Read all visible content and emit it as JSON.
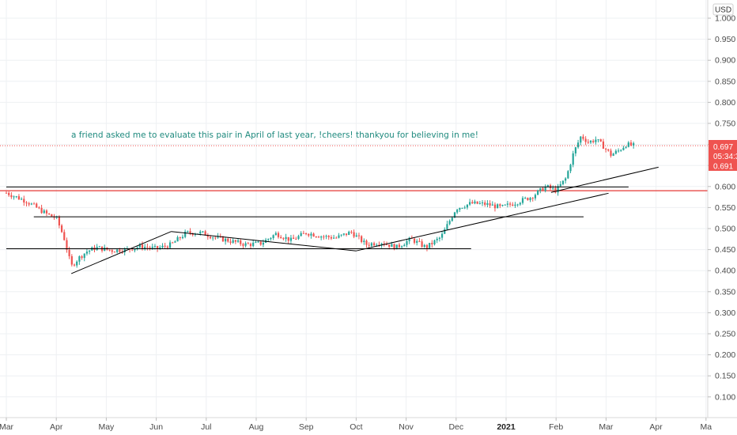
{
  "chart_data": {
    "type": "candlestick",
    "currency": "USD",
    "annotation": "a friend asked me to evaluate this pair in April of last year, !cheers! thankyou for believing in me!",
    "ylim": [
      0.05,
      1.03
    ],
    "y_ticks": [
      "1.000",
      "0.950",
      "0.900",
      "0.850",
      "0.800",
      "0.750",
      "0.700",
      "0.650",
      "0.600",
      "0.550",
      "0.500",
      "0.450",
      "0.400",
      "0.350",
      "0.300",
      "0.250",
      "0.200",
      "0.150",
      "0.100"
    ],
    "x_ticks": [
      {
        "label": "Mar",
        "bold": false
      },
      {
        "label": "Apr",
        "bold": false
      },
      {
        "label": "May",
        "bold": false
      },
      {
        "label": "Jun",
        "bold": false
      },
      {
        "label": "Jul",
        "bold": false
      },
      {
        "label": "Aug",
        "bold": false
      },
      {
        "label": "Sep",
        "bold": false
      },
      {
        "label": "Oct",
        "bold": false
      },
      {
        "label": "Nov",
        "bold": false
      },
      {
        "label": "Dec",
        "bold": false
      },
      {
        "label": "2021",
        "bold": true
      },
      {
        "label": "Feb",
        "bold": false
      },
      {
        "label": "Mar",
        "bold": false
      },
      {
        "label": "Apr",
        "bold": false
      },
      {
        "label": "Ma",
        "bold": false
      }
    ],
    "last_price": "0.697",
    "countdown": "05:34:3",
    "red_level": "0.691",
    "up_color": "#26a69a",
    "down_color": "#ef5350",
    "close_series": [
      {
        "t": 0.0,
        "v": 0.585
      },
      {
        "t": 0.4,
        "v": 0.565
      },
      {
        "t": 0.8,
        "v": 0.535
      },
      {
        "t": 1.0,
        "v": 0.525
      },
      {
        "t": 1.15,
        "v": 0.48
      },
      {
        "t": 1.3,
        "v": 0.41
      },
      {
        "t": 1.45,
        "v": 0.43
      },
      {
        "t": 1.6,
        "v": 0.445
      },
      {
        "t": 1.8,
        "v": 0.455
      },
      {
        "t": 2.1,
        "v": 0.448
      },
      {
        "t": 2.4,
        "v": 0.45
      },
      {
        "t": 2.7,
        "v": 0.458
      },
      {
        "t": 3.0,
        "v": 0.452
      },
      {
        "t": 3.3,
        "v": 0.462
      },
      {
        "t": 3.6,
        "v": 0.49
      },
      {
        "t": 3.9,
        "v": 0.49
      },
      {
        "t": 4.2,
        "v": 0.478
      },
      {
        "t": 4.5,
        "v": 0.47
      },
      {
        "t": 4.8,
        "v": 0.462
      },
      {
        "t": 5.1,
        "v": 0.465
      },
      {
        "t": 5.4,
        "v": 0.488
      },
      {
        "t": 5.7,
        "v": 0.472
      },
      {
        "t": 6.0,
        "v": 0.49
      },
      {
        "t": 6.3,
        "v": 0.482
      },
      {
        "t": 6.6,
        "v": 0.478
      },
      {
        "t": 6.9,
        "v": 0.492
      },
      {
        "t": 7.2,
        "v": 0.462
      },
      {
        "t": 7.5,
        "v": 0.468
      },
      {
        "t": 7.8,
        "v": 0.455
      },
      {
        "t": 8.1,
        "v": 0.475
      },
      {
        "t": 8.4,
        "v": 0.455
      },
      {
        "t": 8.7,
        "v": 0.48
      },
      {
        "t": 9.0,
        "v": 0.548
      },
      {
        "t": 9.3,
        "v": 0.56
      },
      {
        "t": 9.6,
        "v": 0.558
      },
      {
        "t": 9.9,
        "v": 0.55
      },
      {
        "t": 10.2,
        "v": 0.562
      },
      {
        "t": 10.5,
        "v": 0.575
      },
      {
        "t": 10.8,
        "v": 0.6
      },
      {
        "t": 11.0,
        "v": 0.59
      },
      {
        "t": 11.2,
        "v": 0.62
      },
      {
        "t": 11.35,
        "v": 0.68
      },
      {
        "t": 11.5,
        "v": 0.72
      },
      {
        "t": 11.65,
        "v": 0.705
      },
      {
        "t": 11.8,
        "v": 0.712
      },
      {
        "t": 11.95,
        "v": 0.695
      },
      {
        "t": 12.1,
        "v": 0.675
      },
      {
        "t": 12.25,
        "v": 0.685
      },
      {
        "t": 12.4,
        "v": 0.7
      },
      {
        "t": 12.55,
        "v": 0.697
      }
    ],
    "trendlines": [
      {
        "kind": "segment",
        "points": [
          {
            "t": 1.3,
            "v": 0.393
          },
          {
            "t": 3.3,
            "v": 0.493
          }
        ]
      },
      {
        "kind": "segment",
        "points": [
          {
            "t": 3.3,
            "v": 0.493
          },
          {
            "t": 7.0,
            "v": 0.447
          }
        ]
      },
      {
        "kind": "segment",
        "points": [
          {
            "t": 7.0,
            "v": 0.447
          },
          {
            "t": 12.05,
            "v": 0.584
          }
        ]
      },
      {
        "kind": "segment",
        "points": [
          {
            "t": 10.9,
            "v": 0.586
          },
          {
            "t": 13.05,
            "v": 0.646
          }
        ]
      },
      {
        "kind": "horizontal",
        "v": 0.599,
        "t0": 0.0,
        "t1": 12.45
      },
      {
        "kind": "horizontal",
        "v": 0.528,
        "t0": 0.55,
        "t1": 11.55
      },
      {
        "kind": "horizontal",
        "v": 0.452,
        "t0": 0.0,
        "t1": 9.3
      }
    ]
  }
}
